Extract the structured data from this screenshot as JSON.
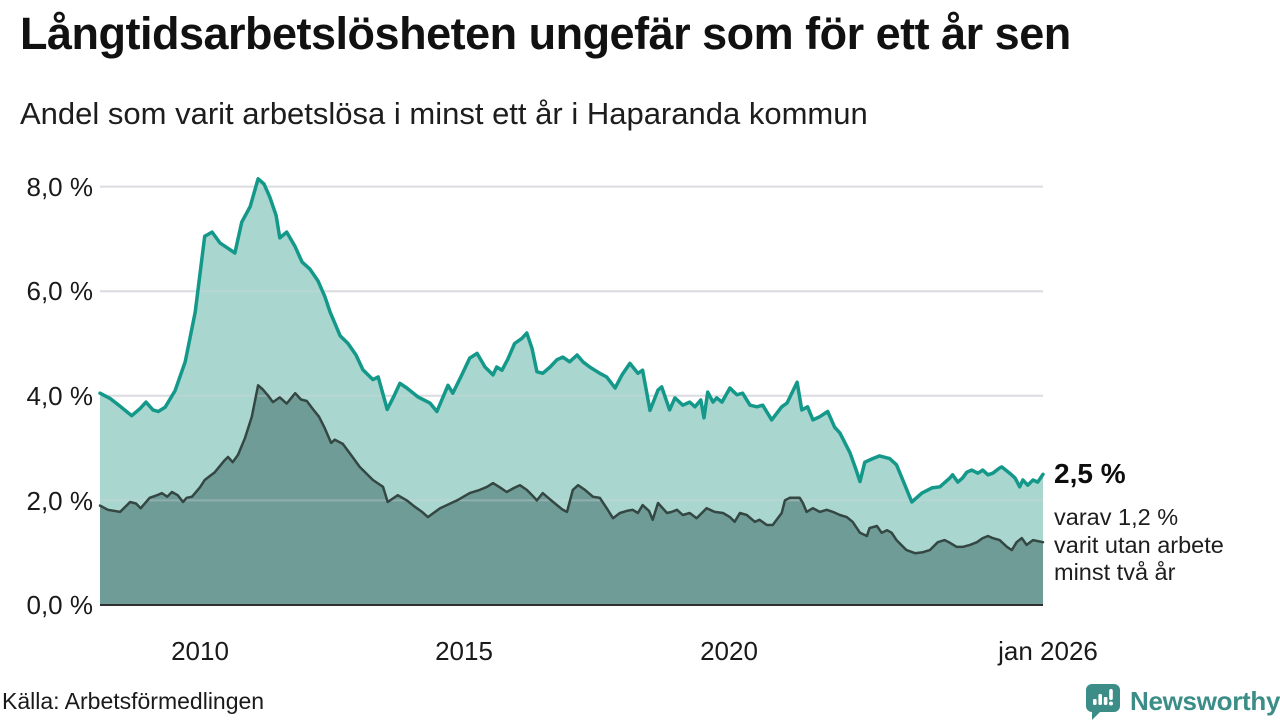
{
  "header": {
    "title": "Långtidsarbetslösheten ungefär som för ett år sen",
    "subtitle": "Andel som varit arbetslösa i minst ett år i Haparanda kommun"
  },
  "annotations": {
    "latest_value": "2,5 %",
    "breakdown": "varav 1,2 %\nvarit utan arbete\nminst två år"
  },
  "footer": {
    "source": "Källa: Arbetsförmedlingen",
    "brand_name": "Newsworthy",
    "brand_color": "#3c8d87"
  },
  "chart_data": {
    "type": "area",
    "title": "Långtidsarbetslösheten ungefär som för ett år sen",
    "subtitle": "Andel som varit arbetslösa i minst ett år i Haparanda kommun",
    "unit": "%",
    "grid_color": "#dcdce2",
    "baseline_color": "#2f2f2f",
    "xlim": [
      2008.11,
      2025.94
    ],
    "ylim": [
      0,
      8.7
    ],
    "x_axis": {
      "ticks": [
        {
          "label": "2010",
          "year": 2010.0
        },
        {
          "label": "2015",
          "year": 2015.0
        },
        {
          "label": "2020",
          "year": 2020.0
        },
        {
          "label": "jan 2026",
          "year": 2026.03
        }
      ]
    },
    "y_axis": {
      "ticks": [
        {
          "label": "0,0 %",
          "value": 0
        },
        {
          "label": "2,0 %",
          "value": 2
        },
        {
          "label": "4,0 %",
          "value": 4
        },
        {
          "label": "6,0 %",
          "value": 6
        },
        {
          "label": "8,0 %",
          "value": 8
        }
      ]
    },
    "series": [
      {
        "name": "Andel arbetslösa minst ett år",
        "latest": 2.5,
        "line_color": "#14988a",
        "line_width": 3.5,
        "fill_color": "#a9d6cf",
        "points": [
          [
            2008.11,
            4.05
          ],
          [
            2008.3,
            3.95
          ],
          [
            2008.49,
            3.8
          ],
          [
            2008.71,
            3.62
          ],
          [
            2008.87,
            3.76
          ],
          [
            2008.98,
            3.88
          ],
          [
            2009.11,
            3.73
          ],
          [
            2009.21,
            3.7
          ],
          [
            2009.34,
            3.78
          ],
          [
            2009.53,
            4.1
          ],
          [
            2009.72,
            4.65
          ],
          [
            2009.91,
            5.6
          ],
          [
            2010.09,
            7.05
          ],
          [
            2010.23,
            7.13
          ],
          [
            2010.38,
            6.92
          ],
          [
            2010.53,
            6.82
          ],
          [
            2010.66,
            6.73
          ],
          [
            2010.79,
            7.32
          ],
          [
            2010.95,
            7.62
          ],
          [
            2011.1,
            8.15
          ],
          [
            2011.21,
            8.05
          ],
          [
            2011.32,
            7.8
          ],
          [
            2011.44,
            7.45
          ],
          [
            2011.51,
            7.02
          ],
          [
            2011.64,
            7.13
          ],
          [
            2011.8,
            6.85
          ],
          [
            2011.93,
            6.56
          ],
          [
            2012.08,
            6.42
          ],
          [
            2012.23,
            6.2
          ],
          [
            2012.36,
            5.9
          ],
          [
            2012.46,
            5.6
          ],
          [
            2012.65,
            5.15
          ],
          [
            2012.8,
            5.0
          ],
          [
            2012.95,
            4.78
          ],
          [
            2013.08,
            4.5
          ],
          [
            2013.27,
            4.31
          ],
          [
            2013.37,
            4.36
          ],
          [
            2013.54,
            3.74
          ],
          [
            2013.67,
            4.0
          ],
          [
            2013.78,
            4.24
          ],
          [
            2013.91,
            4.15
          ],
          [
            2014.12,
            3.98
          ],
          [
            2014.35,
            3.86
          ],
          [
            2014.48,
            3.7
          ],
          [
            2014.69,
            4.2
          ],
          [
            2014.78,
            4.05
          ],
          [
            2014.95,
            4.4
          ],
          [
            2015.1,
            4.72
          ],
          [
            2015.24,
            4.81
          ],
          [
            2015.39,
            4.55
          ],
          [
            2015.54,
            4.4
          ],
          [
            2015.61,
            4.55
          ],
          [
            2015.71,
            4.49
          ],
          [
            2015.82,
            4.7
          ],
          [
            2015.95,
            5.0
          ],
          [
            2016.09,
            5.1
          ],
          [
            2016.18,
            5.2
          ],
          [
            2016.28,
            4.9
          ],
          [
            2016.37,
            4.46
          ],
          [
            2016.48,
            4.43
          ],
          [
            2016.62,
            4.55
          ],
          [
            2016.75,
            4.69
          ],
          [
            2016.86,
            4.74
          ],
          [
            2016.99,
            4.65
          ],
          [
            2017.13,
            4.78
          ],
          [
            2017.24,
            4.65
          ],
          [
            2017.37,
            4.55
          ],
          [
            2017.56,
            4.43
          ],
          [
            2017.69,
            4.36
          ],
          [
            2017.85,
            4.15
          ],
          [
            2017.98,
            4.4
          ],
          [
            2018.13,
            4.62
          ],
          [
            2018.28,
            4.43
          ],
          [
            2018.37,
            4.49
          ],
          [
            2018.51,
            3.72
          ],
          [
            2018.66,
            4.11
          ],
          [
            2018.73,
            4.17
          ],
          [
            2018.88,
            3.73
          ],
          [
            2018.98,
            3.96
          ],
          [
            2019.13,
            3.82
          ],
          [
            2019.26,
            3.88
          ],
          [
            2019.36,
            3.79
          ],
          [
            2019.47,
            3.92
          ],
          [
            2019.53,
            3.58
          ],
          [
            2019.6,
            4.07
          ],
          [
            2019.7,
            3.88
          ],
          [
            2019.77,
            3.96
          ],
          [
            2019.87,
            3.88
          ],
          [
            2020.02,
            4.15
          ],
          [
            2020.15,
            4.02
          ],
          [
            2020.26,
            4.05
          ],
          [
            2020.4,
            3.82
          ],
          [
            2020.53,
            3.79
          ],
          [
            2020.64,
            3.82
          ],
          [
            2020.81,
            3.54
          ],
          [
            2021.0,
            3.79
          ],
          [
            2021.1,
            3.86
          ],
          [
            2021.29,
            4.26
          ],
          [
            2021.38,
            3.73
          ],
          [
            2021.49,
            3.79
          ],
          [
            2021.59,
            3.54
          ],
          [
            2021.72,
            3.6
          ],
          [
            2021.87,
            3.7
          ],
          [
            2022.0,
            3.4
          ],
          [
            2022.1,
            3.29
          ],
          [
            2022.29,
            2.91
          ],
          [
            2022.4,
            2.6
          ],
          [
            2022.48,
            2.36
          ],
          [
            2022.57,
            2.73
          ],
          [
            2022.72,
            2.8
          ],
          [
            2022.85,
            2.85
          ],
          [
            2023.04,
            2.8
          ],
          [
            2023.17,
            2.68
          ],
          [
            2023.29,
            2.39
          ],
          [
            2023.46,
            1.97
          ],
          [
            2023.65,
            2.14
          ],
          [
            2023.84,
            2.24
          ],
          [
            2023.99,
            2.26
          ],
          [
            2024.18,
            2.43
          ],
          [
            2024.23,
            2.49
          ],
          [
            2024.33,
            2.35
          ],
          [
            2024.42,
            2.43
          ],
          [
            2024.5,
            2.54
          ],
          [
            2024.59,
            2.58
          ],
          [
            2024.71,
            2.52
          ],
          [
            2024.8,
            2.58
          ],
          [
            2024.9,
            2.49
          ],
          [
            2024.99,
            2.52
          ],
          [
            2025.12,
            2.62
          ],
          [
            2025.16,
            2.64
          ],
          [
            2025.31,
            2.52
          ],
          [
            2025.41,
            2.43
          ],
          [
            2025.5,
            2.26
          ],
          [
            2025.56,
            2.39
          ],
          [
            2025.65,
            2.29
          ],
          [
            2025.75,
            2.39
          ],
          [
            2025.84,
            2.35
          ],
          [
            2025.94,
            2.5
          ]
        ]
      },
      {
        "name": "Andel arbetslösa minst två år",
        "latest": 1.2,
        "line_color": "#344742",
        "line_width": 2.5,
        "fill_color": "#6f9c97",
        "points": [
          [
            2008.11,
            1.9
          ],
          [
            2008.26,
            1.82
          ],
          [
            2008.49,
            1.78
          ],
          [
            2008.68,
            1.97
          ],
          [
            2008.79,
            1.94
          ],
          [
            2008.88,
            1.85
          ],
          [
            2009.05,
            2.05
          ],
          [
            2009.19,
            2.1
          ],
          [
            2009.28,
            2.14
          ],
          [
            2009.38,
            2.07
          ],
          [
            2009.47,
            2.16
          ],
          [
            2009.58,
            2.1
          ],
          [
            2009.68,
            1.97
          ],
          [
            2009.75,
            2.05
          ],
          [
            2009.85,
            2.07
          ],
          [
            2010.0,
            2.25
          ],
          [
            2010.09,
            2.39
          ],
          [
            2010.28,
            2.54
          ],
          [
            2010.47,
            2.77
          ],
          [
            2010.53,
            2.83
          ],
          [
            2010.62,
            2.73
          ],
          [
            2010.72,
            2.87
          ],
          [
            2010.85,
            3.19
          ],
          [
            2010.98,
            3.6
          ],
          [
            2011.1,
            4.2
          ],
          [
            2011.19,
            4.12
          ],
          [
            2011.29,
            4.0
          ],
          [
            2011.38,
            3.88
          ],
          [
            2011.51,
            3.97
          ],
          [
            2011.64,
            3.85
          ],
          [
            2011.8,
            4.05
          ],
          [
            2011.91,
            3.93
          ],
          [
            2012.02,
            3.9
          ],
          [
            2012.14,
            3.74
          ],
          [
            2012.25,
            3.6
          ],
          [
            2012.36,
            3.38
          ],
          [
            2012.48,
            3.1
          ],
          [
            2012.55,
            3.16
          ],
          [
            2012.7,
            3.08
          ],
          [
            2012.87,
            2.85
          ],
          [
            2013.02,
            2.64
          ],
          [
            2013.27,
            2.39
          ],
          [
            2013.46,
            2.26
          ],
          [
            2013.55,
            1.97
          ],
          [
            2013.74,
            2.1
          ],
          [
            2013.91,
            2.0
          ],
          [
            2014.06,
            1.88
          ],
          [
            2014.2,
            1.78
          ],
          [
            2014.31,
            1.68
          ],
          [
            2014.54,
            1.85
          ],
          [
            2014.86,
            2.0
          ],
          [
            2015.1,
            2.14
          ],
          [
            2015.29,
            2.2
          ],
          [
            2015.43,
            2.26
          ],
          [
            2015.54,
            2.33
          ],
          [
            2015.67,
            2.25
          ],
          [
            2015.8,
            2.16
          ],
          [
            2015.94,
            2.24
          ],
          [
            2016.05,
            2.29
          ],
          [
            2016.18,
            2.2
          ],
          [
            2016.28,
            2.1
          ],
          [
            2016.37,
            2.0
          ],
          [
            2016.48,
            2.14
          ],
          [
            2016.62,
            2.02
          ],
          [
            2016.75,
            1.91
          ],
          [
            2016.86,
            1.82
          ],
          [
            2016.94,
            1.78
          ],
          [
            2017.05,
            2.2
          ],
          [
            2017.15,
            2.29
          ],
          [
            2017.28,
            2.2
          ],
          [
            2017.43,
            2.07
          ],
          [
            2017.56,
            2.05
          ],
          [
            2017.69,
            1.85
          ],
          [
            2017.81,
            1.66
          ],
          [
            2017.94,
            1.76
          ],
          [
            2018.07,
            1.8
          ],
          [
            2018.18,
            1.82
          ],
          [
            2018.28,
            1.76
          ],
          [
            2018.37,
            1.91
          ],
          [
            2018.49,
            1.8
          ],
          [
            2018.56,
            1.63
          ],
          [
            2018.66,
            1.95
          ],
          [
            2018.75,
            1.85
          ],
          [
            2018.83,
            1.76
          ],
          [
            2018.92,
            1.78
          ],
          [
            2019.02,
            1.82
          ],
          [
            2019.13,
            1.72
          ],
          [
            2019.26,
            1.76
          ],
          [
            2019.39,
            1.66
          ],
          [
            2019.58,
            1.85
          ],
          [
            2019.73,
            1.78
          ],
          [
            2019.89,
            1.76
          ],
          [
            2020.02,
            1.68
          ],
          [
            2020.11,
            1.59
          ],
          [
            2020.21,
            1.76
          ],
          [
            2020.34,
            1.72
          ],
          [
            2020.49,
            1.59
          ],
          [
            2020.58,
            1.63
          ],
          [
            2020.72,
            1.53
          ],
          [
            2020.83,
            1.53
          ],
          [
            2021.0,
            1.76
          ],
          [
            2021.06,
            2.0
          ],
          [
            2021.15,
            2.05
          ],
          [
            2021.34,
            2.05
          ],
          [
            2021.4,
            1.95
          ],
          [
            2021.47,
            1.78
          ],
          [
            2021.59,
            1.85
          ],
          [
            2021.72,
            1.78
          ],
          [
            2021.85,
            1.82
          ],
          [
            2021.97,
            1.78
          ],
          [
            2022.1,
            1.72
          ],
          [
            2022.23,
            1.68
          ],
          [
            2022.34,
            1.59
          ],
          [
            2022.48,
            1.38
          ],
          [
            2022.61,
            1.32
          ],
          [
            2022.66,
            1.47
          ],
          [
            2022.8,
            1.51
          ],
          [
            2022.89,
            1.38
          ],
          [
            2022.99,
            1.43
          ],
          [
            2023.08,
            1.38
          ],
          [
            2023.17,
            1.24
          ],
          [
            2023.36,
            1.05
          ],
          [
            2023.52,
            0.99
          ],
          [
            2023.67,
            1.01
          ],
          [
            2023.8,
            1.05
          ],
          [
            2023.95,
            1.2
          ],
          [
            2024.08,
            1.24
          ],
          [
            2024.18,
            1.19
          ],
          [
            2024.31,
            1.11
          ],
          [
            2024.42,
            1.11
          ],
          [
            2024.56,
            1.15
          ],
          [
            2024.69,
            1.2
          ],
          [
            2024.8,
            1.28
          ],
          [
            2024.9,
            1.32
          ],
          [
            2024.99,
            1.28
          ],
          [
            2025.12,
            1.24
          ],
          [
            2025.26,
            1.11
          ],
          [
            2025.35,
            1.05
          ],
          [
            2025.44,
            1.2
          ],
          [
            2025.54,
            1.28
          ],
          [
            2025.63,
            1.15
          ],
          [
            2025.75,
            1.24
          ],
          [
            2025.94,
            1.2
          ]
        ]
      }
    ]
  }
}
